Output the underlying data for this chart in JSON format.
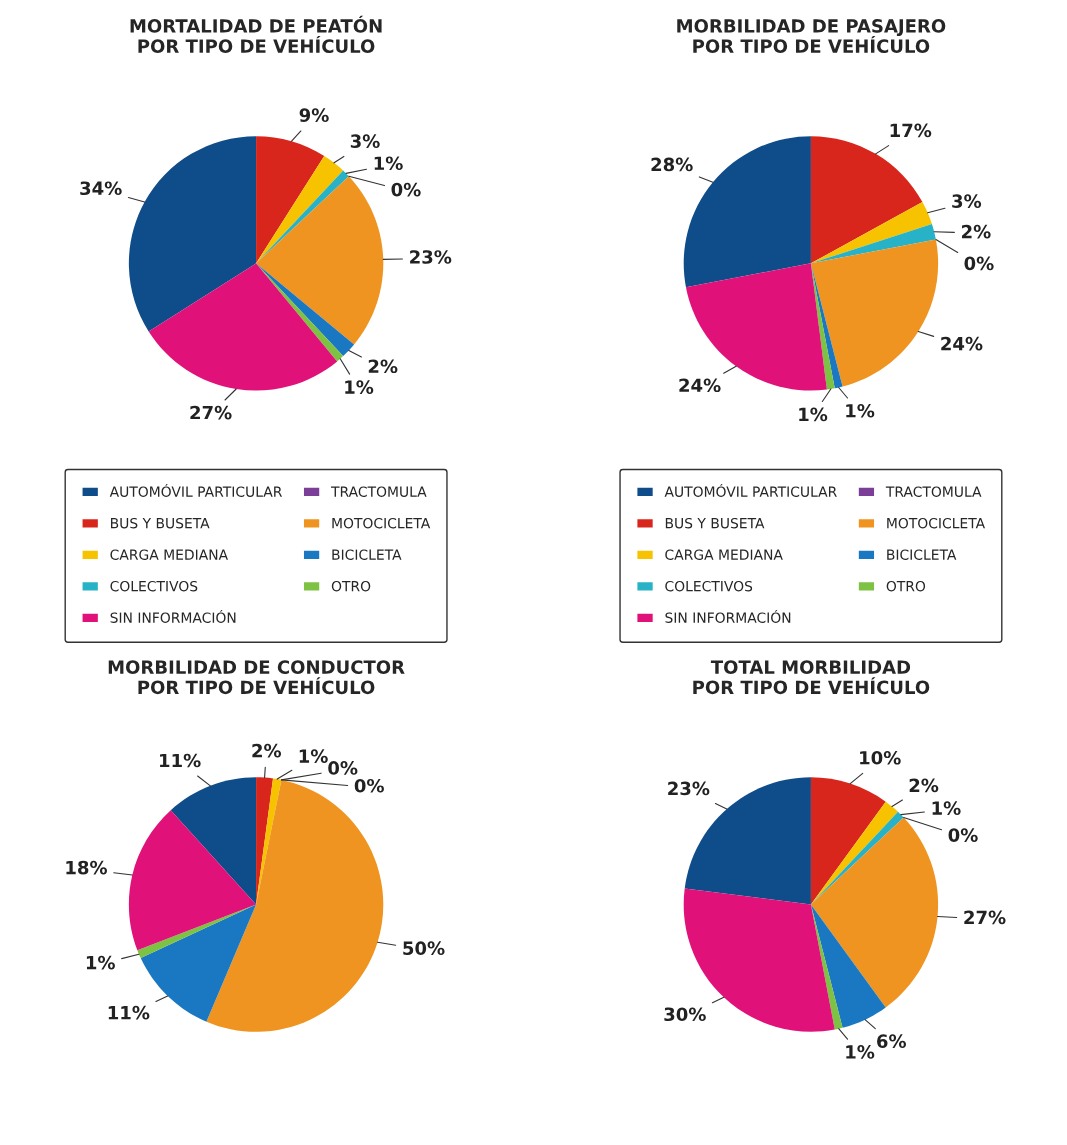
{
  "chart_data": [
    {
      "type": "pie",
      "title": "MORTALIDAD DE PEATÓN\nPOR TIPO DE VEHÍCULO",
      "legend": "bottom",
      "categories": [
        "AUTOMÓVIL PARTICULAR",
        "BUS Y BUSETA",
        "CARGA MEDIANA",
        "COLECTIVOS",
        "TRACTOMULA",
        "MOTOCICLETA",
        "BICICLETA",
        "OTRO",
        "SIN INFORMACIÓN"
      ],
      "colors": [
        "#0f4c8a",
        "#d9261c",
        "#f7c300",
        "#27b2c8",
        "#7b3f98",
        "#ef9420",
        "#1a78c2",
        "#7dc242",
        "#e0127a"
      ],
      "values": [
        34,
        9,
        3,
        1,
        0,
        23,
        2,
        1,
        27
      ],
      "value_labels": [
        "34%",
        "9%",
        "3%",
        "1%",
        "0%",
        "23%",
        "2%",
        "1%",
        "27%"
      ]
    },
    {
      "type": "pie",
      "title": "MORBILIDAD DE PASAJERO\nPOR TIPO DE VEHÍCULO",
      "legend": "bottom",
      "categories": [
        "AUTOMÓVIL PARTICULAR",
        "BUS Y BUSETA",
        "CARGA MEDIANA",
        "COLECTIVOS",
        "TRACTOMULA",
        "MOTOCICLETA",
        "BICICLETA",
        "OTRO",
        "SIN INFORMACIÓN"
      ],
      "colors": [
        "#0f4c8a",
        "#d9261c",
        "#f7c300",
        "#27b2c8",
        "#7b3f98",
        "#ef9420",
        "#1a78c2",
        "#7dc242",
        "#e0127a"
      ],
      "values": [
        28,
        17,
        3,
        2,
        0,
        24,
        1,
        1,
        24
      ],
      "value_labels": [
        "28%",
        "17%",
        "3%",
        "2%",
        "0%",
        "24%",
        "1%",
        "1%",
        "24%"
      ]
    },
    {
      "type": "pie",
      "title": "MORBILIDAD DE CONDUCTOR\nPOR TIPO DE VEHÍCULO",
      "categories": [
        null,
        null,
        null,
        null,
        null,
        null,
        null,
        null,
        null
      ],
      "colors": [
        "#0f4c8a",
        "#d9261c",
        "#f7c300",
        "#27b2c8",
        "#7b3f98",
        "#ef9420",
        "#1a78c2",
        "#7dc242",
        "#e0127a"
      ],
      "values": [
        11,
        2,
        1,
        0,
        0,
        50,
        11,
        1,
        18
      ],
      "value_labels": [
        "11%",
        "2%",
        "1%",
        "0%",
        "0%",
        "50%",
        "11%",
        "1%",
        "18%"
      ]
    },
    {
      "type": "pie",
      "title": "TOTAL MORBILIDAD\nPOR TIPO DE VEHÍCULO",
      "categories": [
        null,
        null,
        null,
        null,
        null,
        null,
        null,
        null,
        null
      ],
      "colors": [
        "#0f4c8a",
        "#d9261c",
        "#f7c300",
        "#27b2c8",
        "#7b3f98",
        "#ef9420",
        "#1a78c2",
        "#7dc242",
        "#e0127a"
      ],
      "values": [
        23,
        10,
        2,
        1,
        0,
        27,
        6,
        1,
        30
      ],
      "value_labels": [
        "23%",
        "10%",
        "2%",
        "1%",
        "0%",
        "27%",
        "6%",
        "1%",
        "30%"
      ]
    }
  ]
}
